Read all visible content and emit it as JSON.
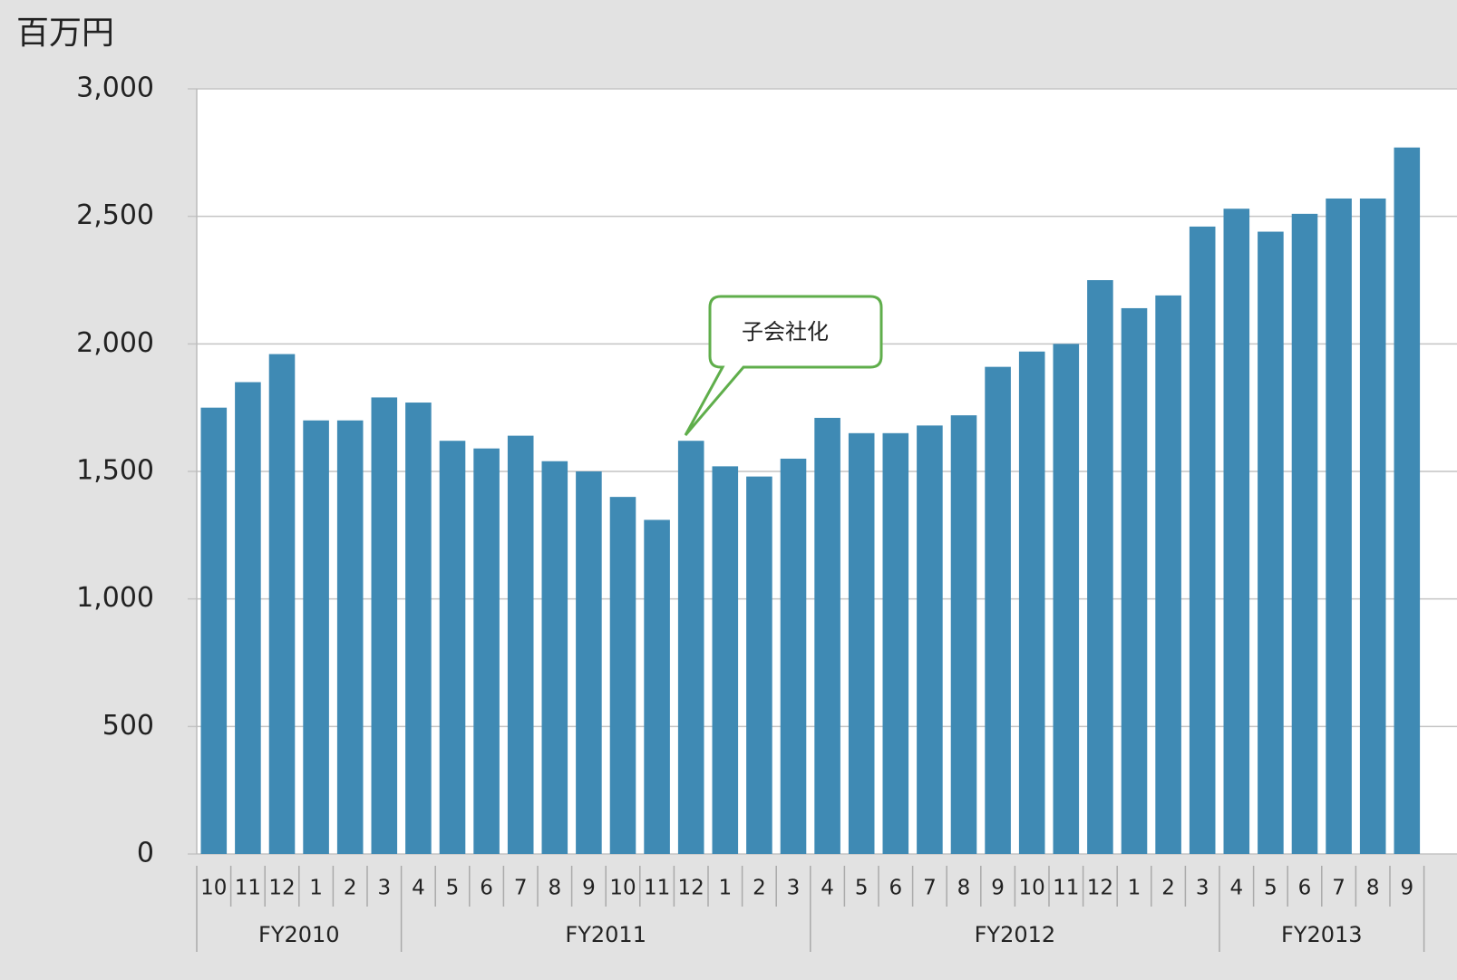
{
  "chart_data": {
    "type": "bar",
    "y_unit": "百万円",
    "annotation": "子会社化",
    "categories": [
      "10",
      "11",
      "12",
      "1",
      "2",
      "3",
      "4",
      "5",
      "6",
      "7",
      "8",
      "9",
      "10",
      "11",
      "12",
      "1",
      "2",
      "3",
      "4",
      "5",
      "6",
      "7",
      "8",
      "9",
      "10",
      "11",
      "12",
      "1",
      "2",
      "3",
      "4",
      "5",
      "6",
      "7",
      "8",
      "9"
    ],
    "category_groups": [
      "FY2010",
      "FY2010",
      "FY2010",
      "FY2010",
      "FY2010",
      "FY2010",
      "FY2011",
      "FY2011",
      "FY2011",
      "FY2011",
      "FY2011",
      "FY2011",
      "FY2011",
      "FY2011",
      "FY2011",
      "FY2011",
      "FY2011",
      "FY2011",
      "FY2012",
      "FY2012",
      "FY2012",
      "FY2012",
      "FY2012",
      "FY2012",
      "FY2012",
      "FY2012",
      "FY2012",
      "FY2012",
      "FY2012",
      "FY2012",
      "FY2013",
      "FY2013",
      "FY2013",
      "FY2013",
      "FY2013",
      "FY2013"
    ],
    "values": [
      1750,
      1850,
      1960,
      1700,
      1700,
      1790,
      1770,
      1620,
      1590,
      1640,
      1540,
      1500,
      1400,
      1310,
      1620,
      1520,
      1480,
      1550,
      1710,
      1650,
      1650,
      1680,
      1720,
      1910,
      1970,
      2000,
      2250,
      2140,
      2190,
      2460,
      2530,
      2440,
      2510,
      2570,
      2570,
      2770
    ],
    "color": "#3f8ab4",
    "ylim": [
      0,
      3000
    ],
    "yticks": [
      0,
      500,
      {
        "value": 1000,
        "label": "1,000"
      },
      {
        "value": 1500,
        "label": "1,500"
      },
      {
        "value": 2000,
        "label": "2,000"
      },
      {
        "value": 2500,
        "label": "2,500"
      },
      {
        "value": 3000,
        "label": "3,000"
      }
    ],
    "grid": true
  }
}
